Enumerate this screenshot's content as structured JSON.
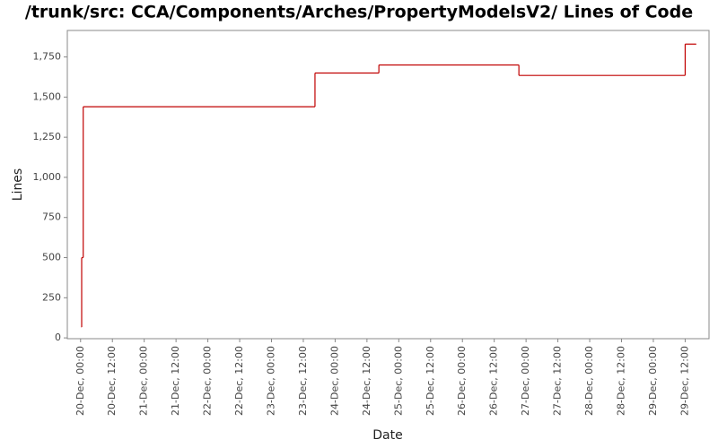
{
  "chart_data": {
    "type": "step-line",
    "title": "/trunk/src: CCA/Components/Arches/PropertyModelsV2/ Lines of Code",
    "xlabel": "Date",
    "ylabel": "Lines",
    "x": [
      "20-Dec, 00:20",
      "20-Dec, 00:25",
      "20-Dec, 01:00",
      "23-Dec, 16:24",
      "24-Dec, 16:30",
      "26-Dec, 21:18",
      "29-Dec, 12:00",
      "29-Dec, 16:00"
    ],
    "values": [
      67,
      500,
      1440,
      1650,
      1700,
      1635,
      1830,
      1830
    ],
    "color": "#c00000",
    "xlim": [
      "19-Dec, 19:00",
      "29-Dec, 21:00"
    ],
    "xticks": [
      "20-Dec, 00:00",
      "20-Dec, 12:00",
      "21-Dec, 00:00",
      "21-Dec, 12:00",
      "22-Dec, 00:00",
      "22-Dec, 12:00",
      "23-Dec, 00:00",
      "23-Dec, 12:00",
      "24-Dec, 00:00",
      "24-Dec, 12:00",
      "25-Dec, 00:00",
      "25-Dec, 12:00",
      "26-Dec, 00:00",
      "26-Dec, 12:00",
      "27-Dec, 00:00",
      "27-Dec, 12:00",
      "28-Dec, 00:00",
      "28-Dec, 12:00",
      "29-Dec, 00:00",
      "29-Dec, 12:00"
    ],
    "ylim": [
      -5,
      1915
    ],
    "yticks": [
      0,
      250,
      500,
      750,
      {
        "value": 1000,
        "label": "1,000"
      },
      {
        "value": 1250,
        "label": "1,250"
      },
      {
        "value": 1500,
        "label": "1,500"
      },
      {
        "value": 1750,
        "label": "1,750"
      }
    ],
    "grid": false
  }
}
